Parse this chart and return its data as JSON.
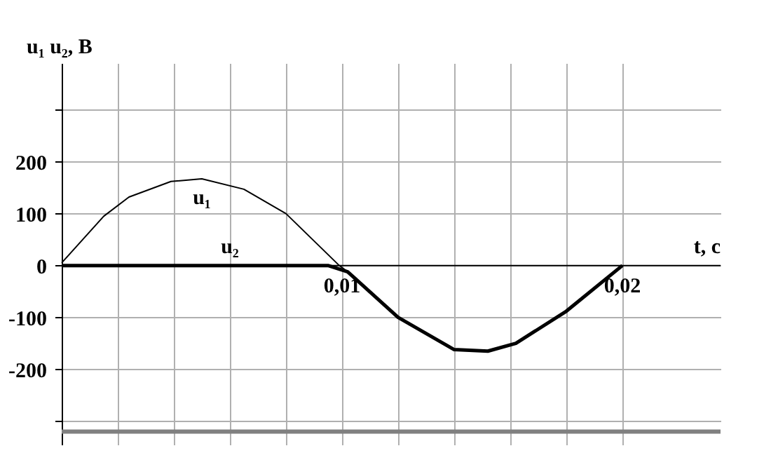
{
  "chart_data": {
    "type": "line",
    "xlabel": "t, c",
    "ylabel": "u₁   u₂, В",
    "xlim": [
      0,
      0.0235
    ],
    "ylim": [
      -345,
      390
    ],
    "xticks": [
      {
        "value": 0.002,
        "label": null
      },
      {
        "value": 0.004,
        "label": null
      },
      {
        "value": 0.006,
        "label": null
      },
      {
        "value": 0.008,
        "label": null
      },
      {
        "value": 0.01,
        "label": "0,01"
      },
      {
        "value": 0.012,
        "label": null
      },
      {
        "value": 0.014,
        "label": null
      },
      {
        "value": 0.016,
        "label": null
      },
      {
        "value": 0.018,
        "label": null
      },
      {
        "value": 0.02,
        "label": "0,02"
      }
    ],
    "yticks": [
      {
        "value": -300,
        "label": null
      },
      -200,
      -100,
      0,
      100,
      200,
      {
        "value": 300,
        "label": null
      }
    ],
    "grid": true,
    "marker": "none",
    "line_style": "solid",
    "ref_lines": [
      {
        "axis": "y",
        "value": -320,
        "label": null,
        "color": "#808080"
      }
    ],
    "series": [
      {
        "name": "u₁",
        "color": "#000000",
        "x": [
          0,
          0.0015,
          0.0024,
          0.0039,
          0.005,
          0.0065,
          0.008,
          0.0099,
          0.0102,
          0.012,
          0.014,
          0.0152,
          0.0162,
          0.018,
          0.02
        ],
        "values": [
          5,
          95,
          132,
          162,
          167,
          147,
          100,
          0,
          -12,
          -100,
          -162,
          -165,
          -150,
          -88,
          0
        ]
      },
      {
        "name": "u₂",
        "color": "#000000",
        "x": [
          0,
          0.002,
          0.004,
          0.006,
          0.008,
          0.0095,
          0.0102,
          0.012,
          0.014,
          0.0152,
          0.0162,
          0.018,
          0.02
        ],
        "values": [
          0,
          0,
          0,
          0,
          0,
          0,
          -12,
          -100,
          -162,
          -165,
          -150,
          -88,
          0
        ]
      }
    ]
  }
}
